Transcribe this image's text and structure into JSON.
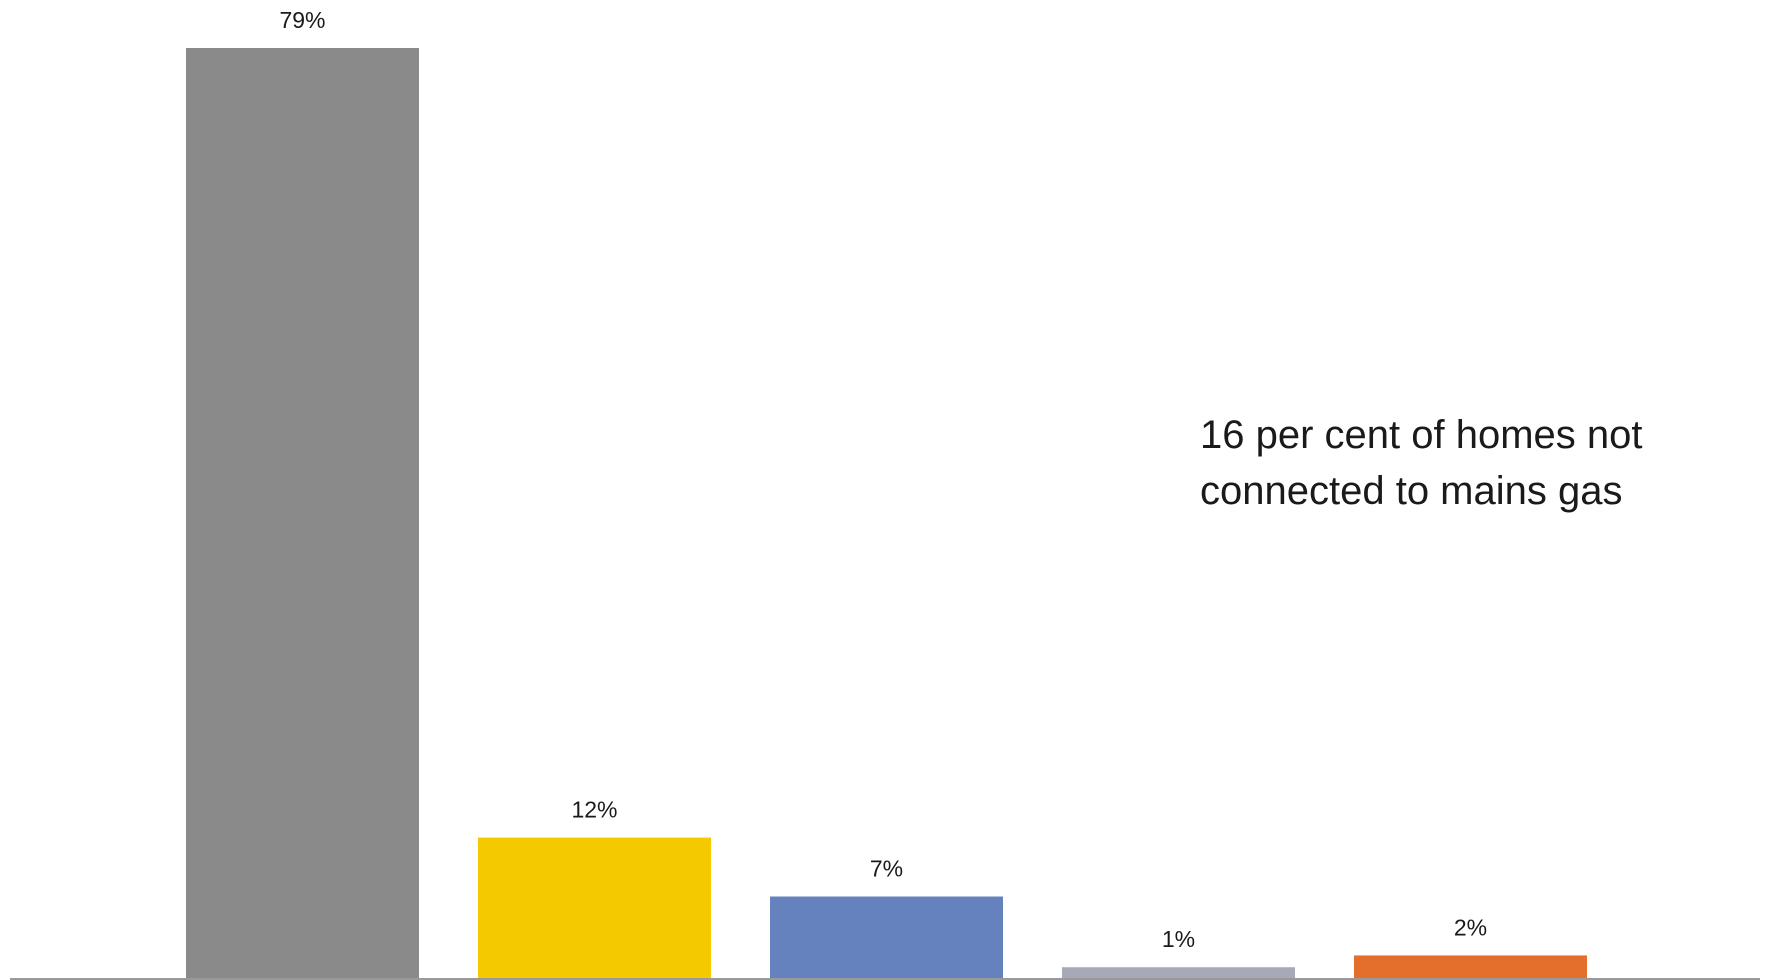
{
  "chart_data": {
    "type": "bar",
    "values": [
      79,
      12,
      7,
      1,
      2
    ],
    "labels": [
      "79%",
      "12%",
      "7%",
      "1%",
      "2%"
    ],
    "colors": [
      "#8a8a8a",
      "#f5c900",
      "#6682be",
      "#a7a9b8",
      "#e46f2d"
    ],
    "ylim": [
      0,
      79
    ],
    "grid": false,
    "legend": "none",
    "annotation": [
      "16 per cent of homes not",
      "connected to mains gas"
    ]
  },
  "colors": {
    "axis": "#999999",
    "text": "#1a1a1a"
  }
}
